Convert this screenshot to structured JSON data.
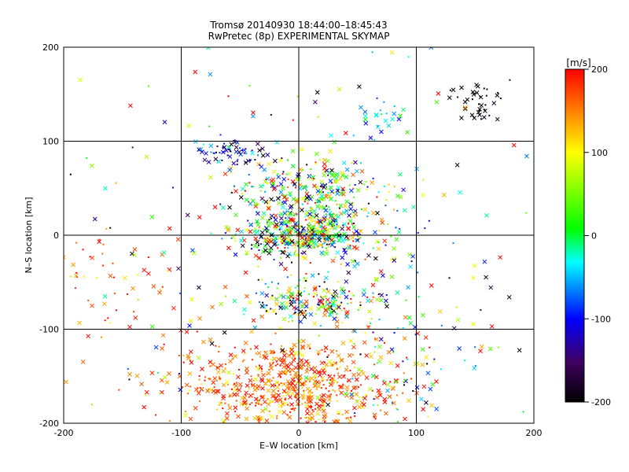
{
  "chart_data": {
    "type": "scatter",
    "title_line1": "Tromsø 20140930 18:44:00–18:45:43",
    "title_line2": "RwPretec (8p) EXPERIMENTAL SKYMAP",
    "xlabel": "E–W location [km]",
    "ylabel": "N–S location [km]",
    "xlim": [
      -200,
      200
    ],
    "ylim": [
      -200,
      200
    ],
    "xticks": [
      -200,
      -100,
      0,
      100,
      200
    ],
    "yticks": [
      -200,
      -100,
      0,
      100,
      200
    ],
    "grid": true,
    "grid_step": 100,
    "colorbar": {
      "label": "[m/s]",
      "range": [
        -200,
        200
      ],
      "ticks": [
        200,
        100,
        0,
        -100,
        -200
      ],
      "colormap": [
        "#000000",
        "#400060",
        "#0000ff",
        "#00ffff",
        "#00ff00",
        "#ffff00",
        "#ff0000"
      ]
    },
    "markers": [
      "cross (x)",
      "dot"
    ],
    "clusters": [
      {
        "x": -10,
        "y": -160,
        "sx": 50,
        "sy": 25,
        "n": 700,
        "v": 160,
        "vs": 40
      },
      {
        "x": 15,
        "y": -70,
        "sx": 25,
        "sy": 12,
        "n": 180,
        "v": 20,
        "vs": 140
      },
      {
        "x": 5,
        "y": 0,
        "sx": 28,
        "sy": 12,
        "n": 450,
        "v": 0,
        "vs": 120
      },
      {
        "x": 10,
        "y": 45,
        "sx": 30,
        "sy": 18,
        "n": 300,
        "v": 30,
        "vs": 130
      },
      {
        "x": -55,
        "y": 88,
        "sx": 18,
        "sy": 7,
        "n": 70,
        "v": -130,
        "vs": 50
      },
      {
        "x": 150,
        "y": 145,
        "sx": 12,
        "sy": 10,
        "n": 40,
        "v": -200,
        "vs": 10
      },
      {
        "x": 75,
        "y": 125,
        "sx": 12,
        "sy": 12,
        "n": 25,
        "v": -50,
        "vs": 40
      },
      {
        "x": -160,
        "y": -60,
        "sx": 30,
        "sy": 40,
        "n": 60,
        "v": 170,
        "vs": 40
      },
      {
        "x": 120,
        "y": -120,
        "sx": 40,
        "sy": 40,
        "n": 50,
        "v": 0,
        "vs": 130
      },
      {
        "x": 0,
        "y": 0,
        "sx": 110,
        "sy": 110,
        "n": 200,
        "v": 0,
        "vs": 150
      },
      {
        "x": 75,
        "y": -120,
        "sx": 20,
        "sy": 60,
        "n": 60,
        "v": -40,
        "vs": 80
      }
    ]
  }
}
